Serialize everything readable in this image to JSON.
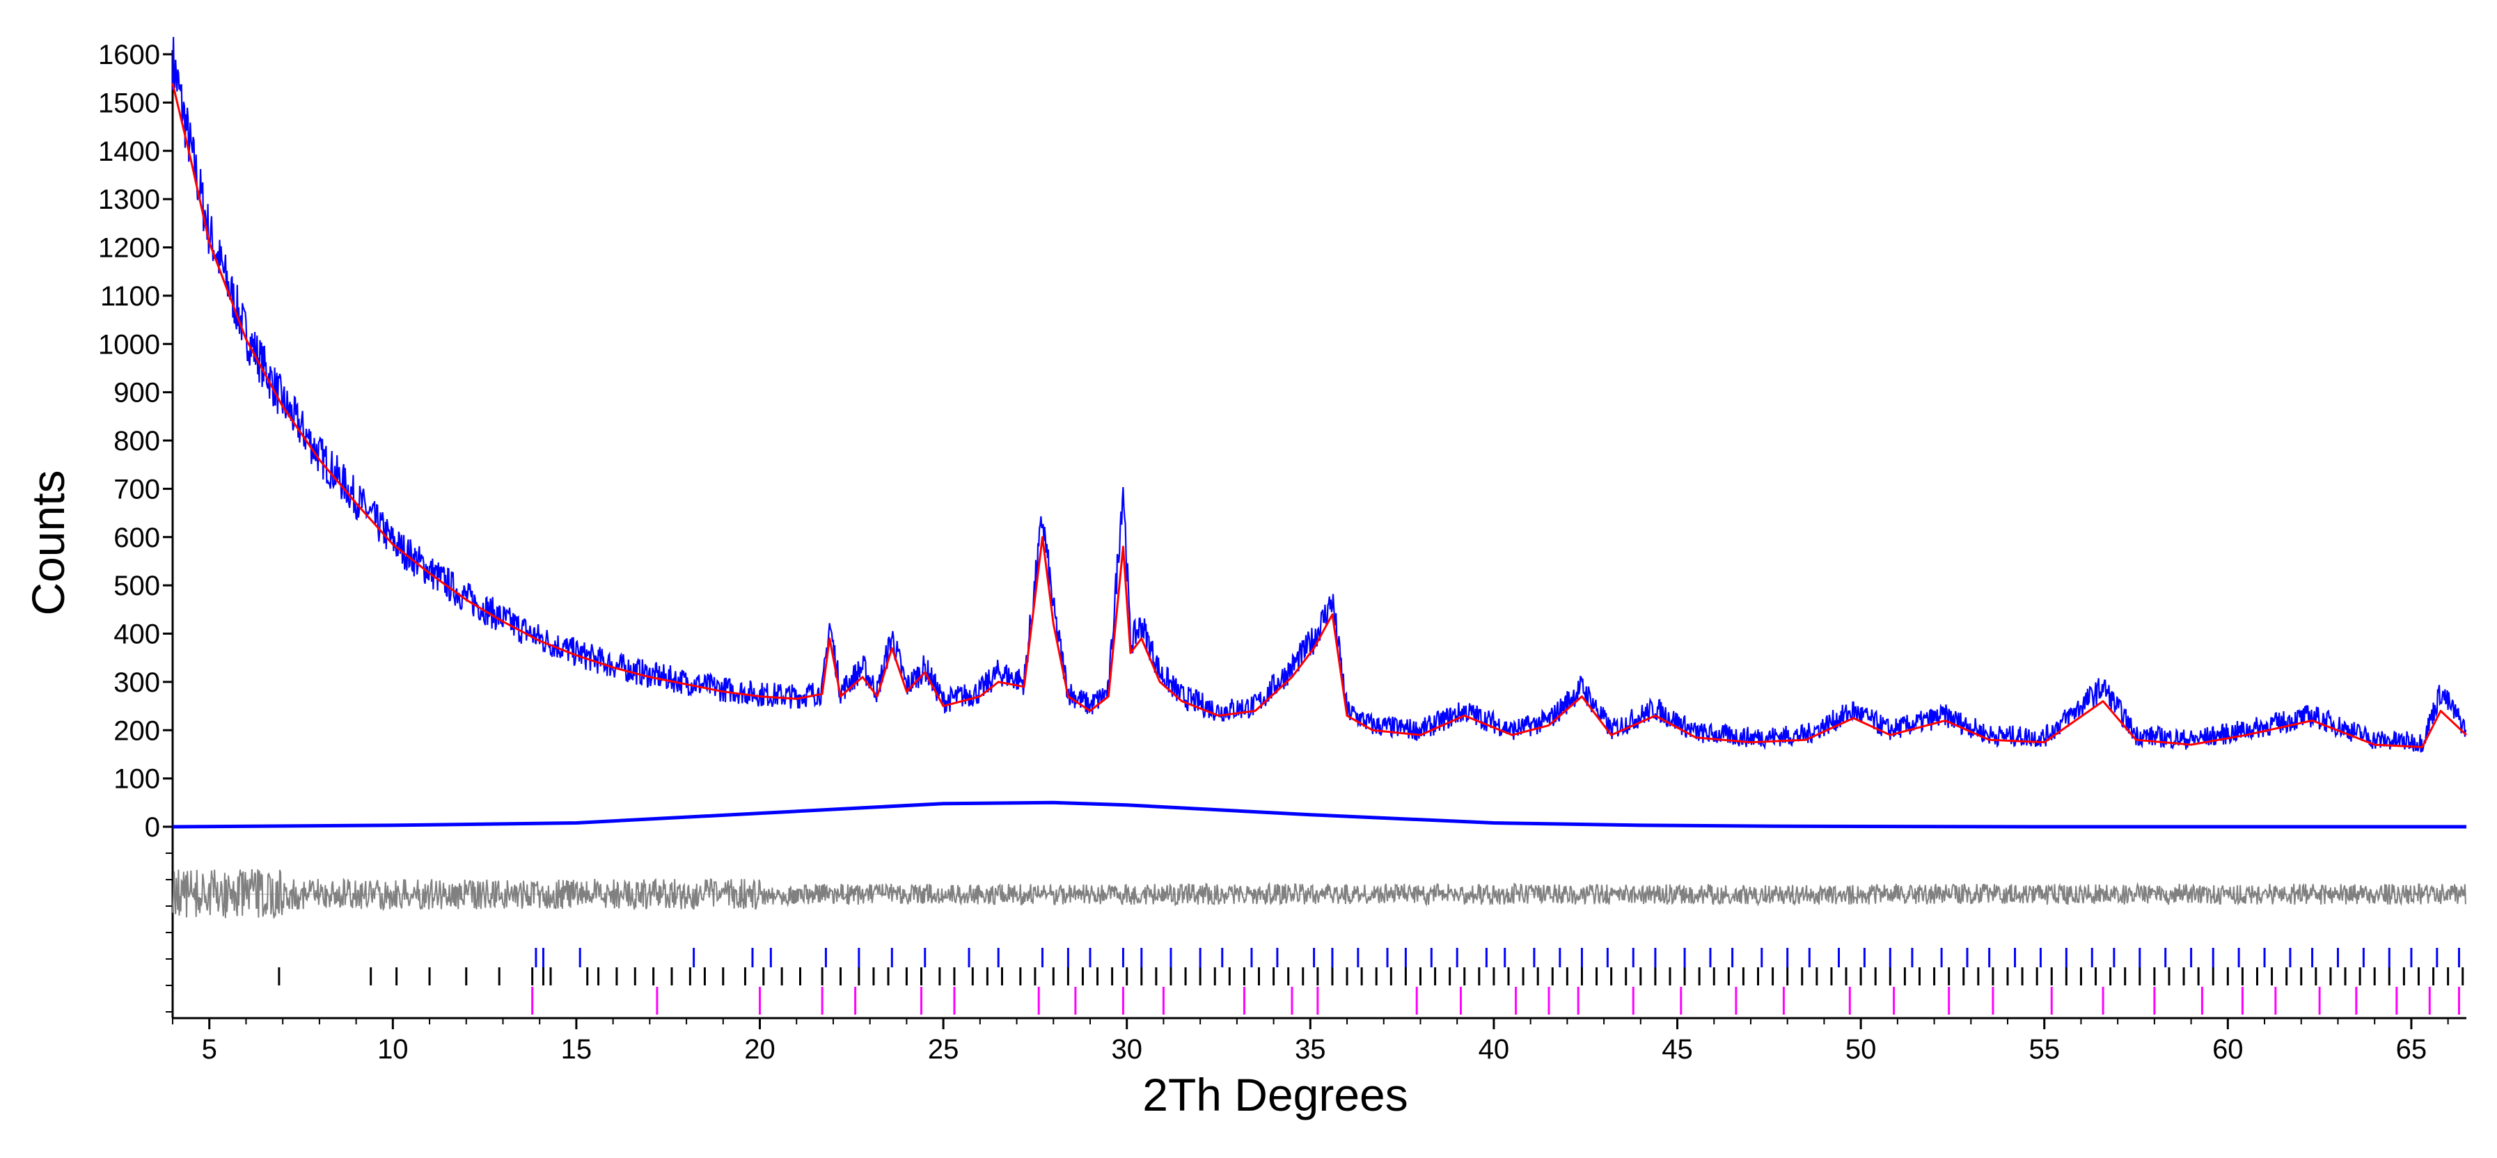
{
  "chart_data": {
    "type": "line",
    "title": "",
    "xlabel": "2Th Degrees",
    "ylabel": "Counts",
    "xlim": [
      4,
      66.5
    ],
    "ylim": [
      0,
      1600
    ],
    "x_ticks": [
      5,
      10,
      15,
      20,
      25,
      30,
      35,
      40,
      45,
      50,
      55,
      60,
      65
    ],
    "y_ticks": [
      0,
      100,
      200,
      300,
      400,
      500,
      600,
      700,
      800,
      900,
      1000,
      1100,
      1200,
      1300,
      1400,
      1500,
      1600
    ],
    "grid": false,
    "legend": "none",
    "series": [
      {
        "role": "observed",
        "color": "#0000ff",
        "x": [
          4.0,
          4.5,
          5.0,
          6.0,
          7.0,
          8.0,
          9.0,
          10.0,
          11.0,
          12.0,
          13.0,
          14.0,
          15.0,
          16.0,
          17.0,
          18.0,
          19.0,
          20.0,
          21.0,
          21.7,
          21.9,
          22.2,
          22.8,
          23.2,
          23.6,
          24.0,
          24.5,
          25.0,
          26.0,
          26.5,
          27.2,
          27.7,
          28.0,
          28.4,
          29.0,
          29.5,
          29.9,
          30.1,
          30.4,
          30.9,
          31.5,
          32.5,
          33.5,
          34.5,
          35.1,
          35.6,
          36.0,
          36.7,
          38.0,
          39.2,
          40.5,
          41.5,
          42.4,
          43.2,
          44.4,
          45.5,
          47.0,
          48.5,
          49.8,
          50.8,
          52.3,
          53.5,
          55.0,
          56.6,
          57.5,
          59.0,
          60.5,
          62.3,
          64.0,
          65.3,
          65.8,
          66.5
        ],
        "y": [
          1590,
          1400,
          1230,
          1020,
          880,
          770,
          680,
          590,
          530,
          475,
          430,
          390,
          360,
          335,
          315,
          300,
          285,
          275,
          270,
          280,
          420,
          280,
          330,
          280,
          395,
          290,
          330,
          260,
          280,
          320,
          300,
          640,
          450,
          280,
          250,
          280,
          710,
          380,
          420,
          320,
          270,
          240,
          250,
          330,
          390,
          470,
          240,
          210,
          200,
          240,
          200,
          220,
          290,
          200,
          245,
          195,
          185,
          190,
          240,
          200,
          230,
          190,
          185,
          290,
          190,
          180,
          200,
          230,
          180,
          175,
          280,
          200
        ]
      },
      {
        "role": "calculated",
        "color": "#ff0000",
        "x": [
          4.0,
          4.5,
          5.0,
          6.0,
          7.0,
          8.0,
          9.0,
          10.0,
          11.0,
          12.0,
          13.0,
          14.0,
          15.0,
          16.0,
          17.0,
          18.0,
          19.0,
          20.0,
          21.0,
          21.7,
          21.9,
          22.2,
          22.8,
          23.2,
          23.6,
          24.0,
          24.5,
          25.0,
          26.0,
          26.5,
          27.2,
          27.7,
          28.0,
          28.4,
          29.0,
          29.5,
          29.9,
          30.1,
          30.4,
          30.9,
          31.5,
          32.5,
          33.5,
          34.5,
          35.1,
          35.6,
          36.0,
          36.7,
          38.0,
          39.2,
          40.5,
          41.5,
          42.4,
          43.2,
          44.4,
          45.5,
          47.0,
          48.5,
          49.8,
          50.8,
          52.3,
          53.5,
          55.0,
          56.6,
          57.5,
          59.0,
          60.5,
          62.3,
          64.0,
          65.3,
          65.8,
          66.5
        ],
        "y": [
          1540,
          1380,
          1210,
          1010,
          870,
          760,
          670,
          585,
          525,
          470,
          425,
          385,
          355,
          330,
          310,
          295,
          280,
          270,
          265,
          275,
          390,
          270,
          310,
          270,
          370,
          280,
          320,
          250,
          270,
          300,
          290,
          600,
          420,
          270,
          240,
          270,
          580,
          360,
          390,
          300,
          260,
          230,
          240,
          310,
          370,
          440,
          230,
          200,
          190,
          230,
          190,
          210,
          270,
          190,
          230,
          185,
          175,
          180,
          225,
          190,
          220,
          180,
          175,
          260,
          180,
          170,
          190,
          220,
          170,
          165,
          240,
          190
        ]
      },
      {
        "role": "background",
        "color": "#0000ff",
        "x": [
          4.0,
          10.0,
          15.0,
          20.0,
          25.0,
          28.0,
          30.0,
          35.0,
          40.0,
          44.0,
          48.0,
          55.0,
          60.0,
          66.5
        ],
        "y": [
          0,
          3,
          8,
          28,
          48,
          50,
          45,
          25,
          8,
          3,
          1,
          0,
          0,
          0
        ]
      }
    ],
    "difference_curve": {
      "color": "#808080",
      "note": "observed minus calculated, plotted below the zero line"
    },
    "reflection_markers": [
      {
        "color": "#0000ff",
        "x": [
          13.9,
          14.1,
          15.1,
          18.2,
          19.8,
          20.3,
          21.8,
          22.7,
          23.6,
          24.5,
          25.7,
          26.5,
          27.7,
          28.4,
          29.0,
          29.9,
          30.4,
          31.2,
          32.0,
          32.6,
          33.4,
          34.1,
          35.1,
          35.6,
          36.3,
          37.1,
          37.6,
          38.3,
          39.0,
          39.8,
          40.3,
          41.1,
          41.8,
          42.4,
          43.1,
          43.8,
          44.4,
          45.2,
          45.9,
          46.5,
          47.3,
          48.0,
          48.6,
          49.4,
          50.1,
          50.8,
          51.4,
          52.2,
          52.9,
          53.5,
          54.2,
          54.9,
          55.6,
          56.3,
          56.9,
          57.6,
          58.3,
          59.0,
          59.6,
          60.3,
          61.0,
          61.7,
          62.3,
          63.0,
          63.7,
          64.4,
          65.0,
          65.7,
          66.3
        ]
      },
      {
        "color": "#000000",
        "x": [
          6.9,
          9.4,
          10.1,
          11.0,
          12.0,
          12.9,
          13.8,
          14.1,
          14.3,
          15.3,
          15.6,
          16.1,
          16.6,
          17.1,
          17.6,
          18.1,
          18.5,
          19.0,
          19.6,
          20.1,
          20.6,
          21.1,
          21.7,
          22.2,
          22.7,
          23.1,
          23.5,
          24.0,
          24.4,
          24.9,
          25.3,
          25.8,
          26.2,
          26.6,
          27.1,
          27.5,
          28.0,
          28.4,
          28.8,
          29.2,
          29.6,
          30.0,
          30.4,
          30.8,
          31.2,
          31.6,
          32.0,
          32.4,
          32.8,
          33.2,
          33.6,
          34.0,
          34.4,
          34.8,
          35.2,
          35.6,
          36.0,
          36.4,
          36.8,
          37.2,
          37.6,
          38.0,
          38.4,
          38.8,
          39.2,
          39.6,
          40.0,
          40.4,
          40.8,
          41.2,
          41.6,
          42.0,
          42.4,
          42.8,
          43.2,
          43.6,
          44.0,
          44.4,
          44.8,
          45.2,
          45.6,
          46.0,
          46.4,
          46.8,
          47.2,
          47.6,
          48.0,
          48.4,
          48.8,
          49.2,
          49.6,
          50.0,
          50.4,
          50.8,
          51.2,
          51.6,
          52.0,
          52.4,
          52.8,
          53.2,
          53.6,
          54.0,
          54.4,
          54.8,
          55.2,
          55.6,
          56.0,
          56.4,
          56.8,
          57.2,
          57.6,
          58.0,
          58.4,
          58.8,
          59.2,
          59.6,
          60.0,
          60.4,
          60.8,
          61.2,
          61.6,
          62.0,
          62.4,
          62.8,
          63.2,
          63.6,
          64.0,
          64.4,
          64.8,
          65.2,
          65.6,
          66.0,
          66.4
        ]
      },
      {
        "color": "#ff00ff",
        "x": [
          13.8,
          17.2,
          20.0,
          21.7,
          22.6,
          24.4,
          25.3,
          27.6,
          28.6,
          29.9,
          31.0,
          33.2,
          34.5,
          35.2,
          37.9,
          39.1,
          40.6,
          41.5,
          42.3,
          43.8,
          45.1,
          46.6,
          47.9,
          49.7,
          50.9,
          52.4,
          53.6,
          55.2,
          56.6,
          58.0,
          59.3,
          60.4,
          61.3,
          62.5,
          63.5,
          64.6,
          65.5,
          66.3
        ]
      }
    ]
  }
}
